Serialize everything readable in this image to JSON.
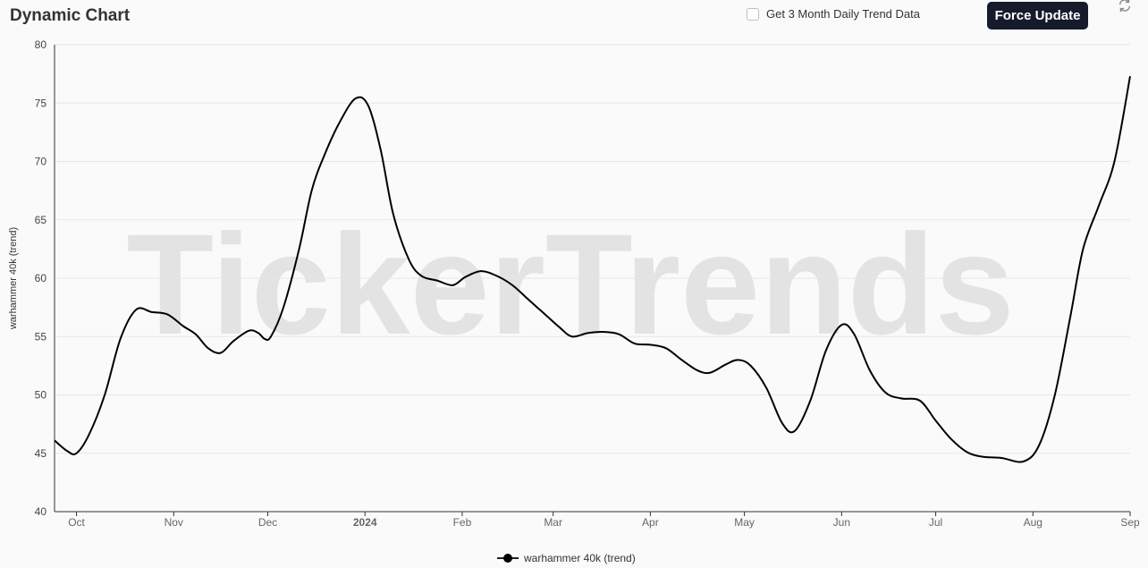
{
  "header": {
    "title": "Dynamic Chart",
    "daily_toggle_label": "Get 3 Month Daily Trend Data",
    "daily_toggle_checked": false,
    "force_update_label": "Force Update",
    "refresh_icon": "refresh-icon"
  },
  "watermark": "TickerTrends",
  "colors": {
    "line": "#000000",
    "button_bg": "#161b2c",
    "watermark": "#e3e3e3"
  },
  "chart_data": {
    "type": "line",
    "title": "",
    "xlabel": "",
    "ylabel": "warhammer 40k  (trend)",
    "ylim": [
      40,
      80
    ],
    "yticks": [
      40,
      45,
      50,
      55,
      60,
      65,
      70,
      75,
      80
    ],
    "grid": true,
    "legend_position": "bottom-center",
    "x_ticks": [
      {
        "label": "Oct",
        "date": "2023-10-01",
        "bold": false
      },
      {
        "label": "Nov",
        "date": "2023-11-01",
        "bold": false
      },
      {
        "label": "Dec",
        "date": "2023-12-01",
        "bold": false
      },
      {
        "label": "2024",
        "date": "2024-01-01",
        "bold": true
      },
      {
        "label": "Feb",
        "date": "2024-02-01",
        "bold": false
      },
      {
        "label": "Mar",
        "date": "2024-03-01",
        "bold": false
      },
      {
        "label": "Apr",
        "date": "2024-04-01",
        "bold": false
      },
      {
        "label": "May",
        "date": "2024-05-01",
        "bold": false
      },
      {
        "label": "Jun",
        "date": "2024-06-01",
        "bold": false
      },
      {
        "label": "Jul",
        "date": "2024-07-01",
        "bold": false
      },
      {
        "label": "Aug",
        "date": "2024-08-01",
        "bold": false
      },
      {
        "label": "Sep",
        "date": "2024-09-01",
        "bold": false
      }
    ],
    "xlim": [
      "2023-09-24",
      "2024-09-01"
    ],
    "series": [
      {
        "name": "warhammer 40k  (trend)",
        "color": "#000000",
        "points": [
          [
            "2023-09-24",
            46.1
          ],
          [
            "2023-09-28",
            45.2
          ],
          [
            "2023-10-01",
            45.0
          ],
          [
            "2023-10-05",
            46.6
          ],
          [
            "2023-10-10",
            50.0
          ],
          [
            "2023-10-15",
            54.8
          ],
          [
            "2023-10-20",
            57.3
          ],
          [
            "2023-10-25",
            57.1
          ],
          [
            "2023-10-30",
            56.9
          ],
          [
            "2023-11-04",
            55.9
          ],
          [
            "2023-11-08",
            55.2
          ],
          [
            "2023-11-12",
            54.0
          ],
          [
            "2023-11-16",
            53.6
          ],
          [
            "2023-11-20",
            54.6
          ],
          [
            "2023-11-25",
            55.5
          ],
          [
            "2023-11-28",
            55.3
          ],
          [
            "2023-11-30",
            54.8
          ],
          [
            "2023-12-02",
            55.0
          ],
          [
            "2023-12-06",
            57.5
          ],
          [
            "2023-12-11",
            62.5
          ],
          [
            "2023-12-15",
            67.5
          ],
          [
            "2023-12-19",
            70.5
          ],
          [
            "2023-12-24",
            73.4
          ],
          [
            "2023-12-29",
            75.4
          ],
          [
            "2024-01-02",
            74.8
          ],
          [
            "2024-01-06",
            71.0
          ],
          [
            "2024-01-10",
            65.5
          ],
          [
            "2024-01-15",
            61.6
          ],
          [
            "2024-01-19",
            60.2
          ],
          [
            "2024-01-24",
            59.8
          ],
          [
            "2024-01-29",
            59.4
          ],
          [
            "2024-02-02",
            60.1
          ],
          [
            "2024-02-07",
            60.6
          ],
          [
            "2024-02-12",
            60.2
          ],
          [
            "2024-02-17",
            59.4
          ],
          [
            "2024-02-22",
            58.2
          ],
          [
            "2024-02-27",
            57.0
          ],
          [
            "2024-03-03",
            55.8
          ],
          [
            "2024-03-07",
            55.0
          ],
          [
            "2024-03-12",
            55.3
          ],
          [
            "2024-03-17",
            55.4
          ],
          [
            "2024-03-22",
            55.2
          ],
          [
            "2024-03-27",
            54.4
          ],
          [
            "2024-04-01",
            54.3
          ],
          [
            "2024-04-06",
            54.0
          ],
          [
            "2024-04-11",
            53.0
          ],
          [
            "2024-04-16",
            52.1
          ],
          [
            "2024-04-20",
            51.9
          ],
          [
            "2024-04-25",
            52.6
          ],
          [
            "2024-04-29",
            53.0
          ],
          [
            "2024-05-03",
            52.5
          ],
          [
            "2024-05-08",
            50.6
          ],
          [
            "2024-05-13",
            47.6
          ],
          [
            "2024-05-17",
            46.9
          ],
          [
            "2024-05-22",
            49.5
          ],
          [
            "2024-05-27",
            53.8
          ],
          [
            "2024-06-01",
            56.0
          ],
          [
            "2024-06-05",
            55.2
          ],
          [
            "2024-06-10",
            52.1
          ],
          [
            "2024-06-15",
            50.2
          ],
          [
            "2024-06-20",
            49.7
          ],
          [
            "2024-06-26",
            49.5
          ],
          [
            "2024-07-01",
            47.8
          ],
          [
            "2024-07-06",
            46.2
          ],
          [
            "2024-07-11",
            45.1
          ],
          [
            "2024-07-16",
            44.7
          ],
          [
            "2024-07-22",
            44.6
          ],
          [
            "2024-07-29",
            44.3
          ],
          [
            "2024-08-03",
            45.7
          ],
          [
            "2024-08-08",
            50.0
          ],
          [
            "2024-08-13",
            56.8
          ],
          [
            "2024-08-17",
            62.5
          ],
          [
            "2024-08-22",
            66.2
          ],
          [
            "2024-08-27",
            70.0
          ],
          [
            "2024-09-01",
            77.3
          ]
        ]
      }
    ]
  },
  "legend": {
    "label": "warhammer 40k  (trend)"
  }
}
